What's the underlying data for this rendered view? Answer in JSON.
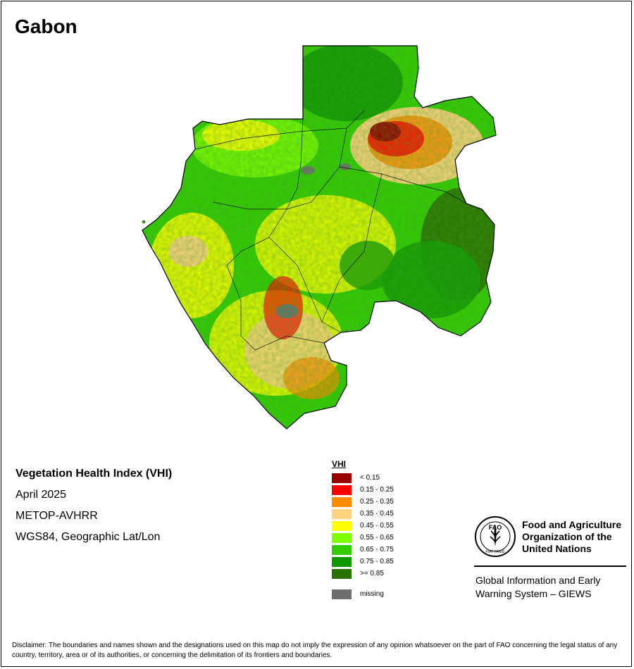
{
  "map": {
    "country": "Gabon",
    "product_title": "Vegetation Health Index (VHI)",
    "period": "April 2025",
    "sensor": "METOP-AVHRR",
    "projection": "WGS84, Geographic Lat/Lon"
  },
  "legend": {
    "title": "VHI",
    "classes": [
      {
        "label": "< 0.15",
        "color": "#990000"
      },
      {
        "label": "0.15 - 0.25",
        "color": "#ff0000"
      },
      {
        "label": "0.25 - 0.35",
        "color": "#ff8c00"
      },
      {
        "label": "0.35 - 0.45",
        "color": "#ffd27f"
      },
      {
        "label": "0.45 - 0.55",
        "color": "#ffff00"
      },
      {
        "label": "0.55 - 0.65",
        "color": "#80ff00"
      },
      {
        "label": "0.65 - 0.75",
        "color": "#33cc00"
      },
      {
        "label": "0.75 - 0.85",
        "color": "#119900"
      },
      {
        "label": ">= 0.85",
        "color": "#2b7300"
      }
    ],
    "missing": {
      "label": "missing",
      "color": "#6e6e6e"
    }
  },
  "logo": {
    "organization": "Food and Agriculture Organization of the United Nations",
    "logo_text": "FAO",
    "motto": "FIAT PANIS",
    "program": "Global Information and Early Warning System – GIEWS"
  },
  "disclaimer": "Disclaimer: The boundaries and names shown and the designations used on this map do not imply the expression of any opinion whatsoever on the part of FAO concerning the legal status of any country, territory, area or of its authorities, or concerning the delimitation of its frontiers and boundaries."
}
